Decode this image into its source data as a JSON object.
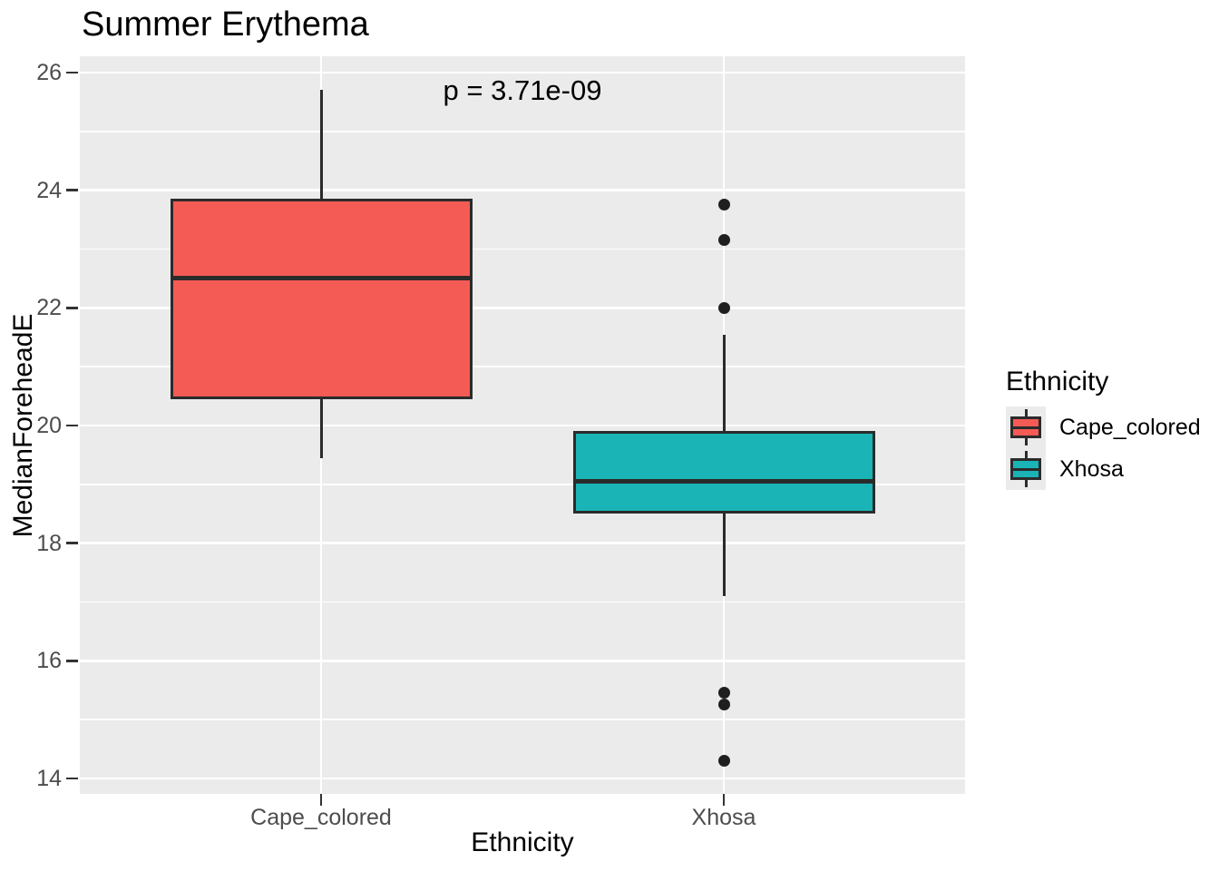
{
  "chart_data": {
    "type": "boxplot",
    "title": "Summer Erythema",
    "annotation": "p = 3.71e-09",
    "xlabel": "Ethnicity",
    "ylabel": "MedianForeheadE",
    "categories": [
      "Cape_colored",
      "Xhosa"
    ],
    "yticks": [
      14,
      16,
      18,
      20,
      22,
      24,
      26
    ],
    "ylim": [
      13.74,
      26.28
    ],
    "grid": "white major+minor horizontal gridlines and vertical category gridlines on grey panel",
    "legend": {
      "position": "right",
      "title": "Ethnicity",
      "entries": [
        {
          "label": "Cape_colored",
          "color": "#F45B55"
        },
        {
          "label": "Xhosa",
          "color": "#1AB4B6"
        }
      ]
    },
    "series": [
      {
        "name": "Cape_colored",
        "fill": "#F45B55",
        "whisker_min": 19.45,
        "q1": 20.45,
        "median": 22.5,
        "q3": 23.85,
        "whisker_max": 25.7,
        "outliers": []
      },
      {
        "name": "Xhosa",
        "fill": "#1AB4B6",
        "whisker_min": 17.1,
        "q1": 18.5,
        "median": 19.05,
        "q3": 19.9,
        "whisker_max": 21.55,
        "outliers": [
          23.75,
          23.15,
          22.0,
          15.45,
          15.25,
          14.3
        ]
      }
    ],
    "colors": {
      "panel_bg": "#EBEBEB",
      "gridline": "#FFFFFF",
      "box_border": "#2B2B2B",
      "outlier": "#1F1F1F",
      "axis_text": "#4D4D4D",
      "title_text": "#000000"
    }
  }
}
